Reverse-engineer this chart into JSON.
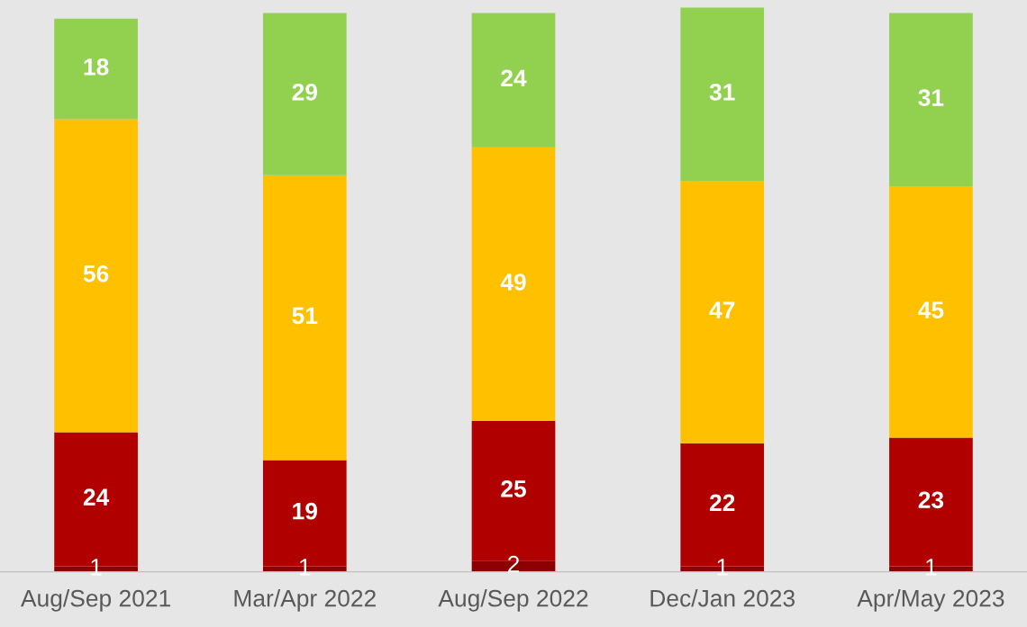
{
  "chart_data": {
    "type": "bar",
    "stacked": true,
    "data_labels": true,
    "tick_labels": "x",
    "grid": false,
    "legend": false,
    "categories": [
      "Aug/Sep 2021",
      "Mar/Apr 2022",
      "Aug/Sep 2022",
      "Dec/Jan 2023",
      "Apr/May 2023"
    ],
    "ylim": [
      0,
      101
    ],
    "series": [
      {
        "color": "#8e0000",
        "values": [
          1,
          1,
          2,
          1,
          1
        ]
      },
      {
        "color": "#b00000",
        "values": [
          24,
          19,
          25,
          22,
          23
        ]
      },
      {
        "color": "#ffc000",
        "values": [
          56,
          51,
          49,
          47,
          45
        ]
      },
      {
        "color": "#92d050",
        "values": [
          18,
          29,
          24,
          31,
          31
        ]
      }
    ]
  }
}
